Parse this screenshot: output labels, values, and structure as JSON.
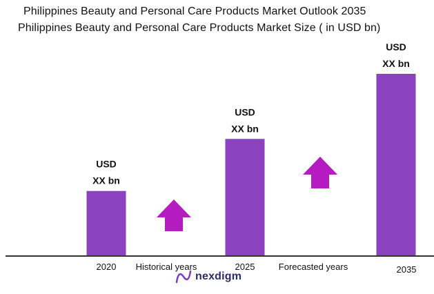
{
  "page": {
    "title": "Philippines Beauty and Personal Care Products Market Outlook 2035",
    "subtitle": "Philippines Beauty and Personal Care Products Market Size  ( in USD bn)",
    "logo_text": "nexdigm"
  },
  "chart_data": {
    "type": "bar",
    "title": "Philippines Beauty and Personal Care Products Market Outlook 2035",
    "subtitle": "Philippines Beauty and Personal Care Products Market Size  ( in USD bn)",
    "categories": [
      "2020",
      "2025",
      "2035"
    ],
    "values": [
      1.0,
      1.8,
      2.8
    ],
    "value_labels": [
      [
        "USD",
        "XX bn"
      ],
      [
        "USD",
        "XX bn"
      ],
      [
        "USD",
        "XX bn"
      ]
    ],
    "period_labels": [
      "Historical years",
      "Forecasted years"
    ],
    "xlabel": "",
    "ylabel": "",
    "ylim": [
      0,
      2.8
    ],
    "grid": false,
    "legend": "none",
    "colors": {
      "bar": "#8a42bf",
      "arrow": "#b41bc0",
      "axis": "#333333",
      "logo": "#2b2a6b",
      "logo_mark": "#7a3fc0"
    },
    "icons": [
      "up-arrow-icon",
      "nexdigm-logo-icon"
    ]
  }
}
